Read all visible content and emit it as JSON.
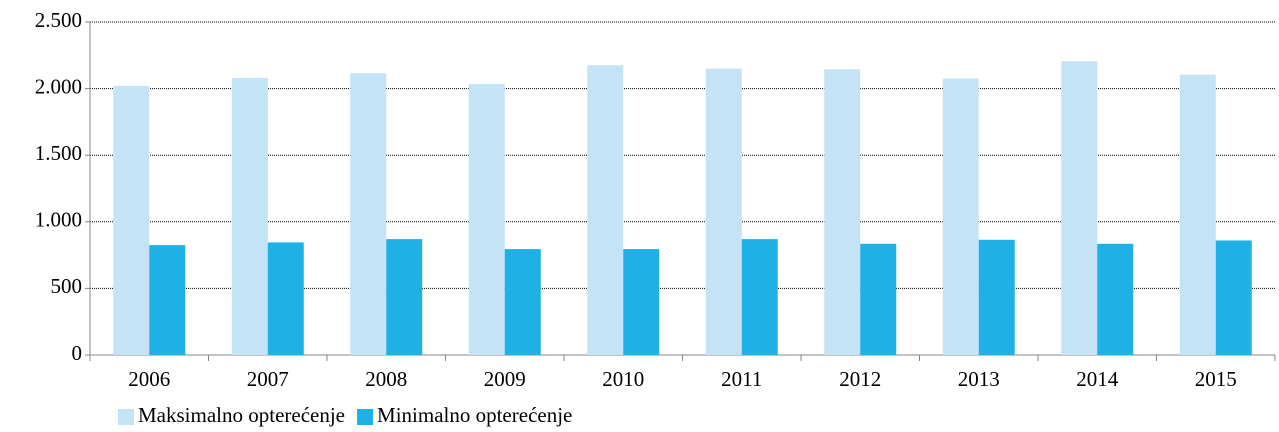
{
  "chart_data": {
    "type": "bar",
    "categories": [
      "2006",
      "2007",
      "2008",
      "2009",
      "2010",
      "2011",
      "2012",
      "2013",
      "2014",
      "2015"
    ],
    "series": [
      {
        "name": "Maksimalno opterećenje",
        "color": "#c5e3f6",
        "values": [
          2020,
          2080,
          2115,
          2035,
          2175,
          2150,
          2145,
          2075,
          2205,
          2105
        ]
      },
      {
        "name": "Minimalno opterećenje",
        "color": "#1fb0e6",
        "values": [
          825,
          845,
          870,
          795,
          795,
          870,
          835,
          865,
          835,
          860
        ]
      }
    ],
    "ylim": [
      0,
      2500
    ],
    "yticks": [
      0,
      500,
      {
        "value": 1000,
        "label": "1.000"
      },
      {
        "value": 1500,
        "label": "1.500"
      },
      {
        "value": 2000,
        "label": "2.000"
      },
      {
        "value": 2500,
        "label": "2.500"
      }
    ],
    "grid": true,
    "legend": "bottom"
  }
}
